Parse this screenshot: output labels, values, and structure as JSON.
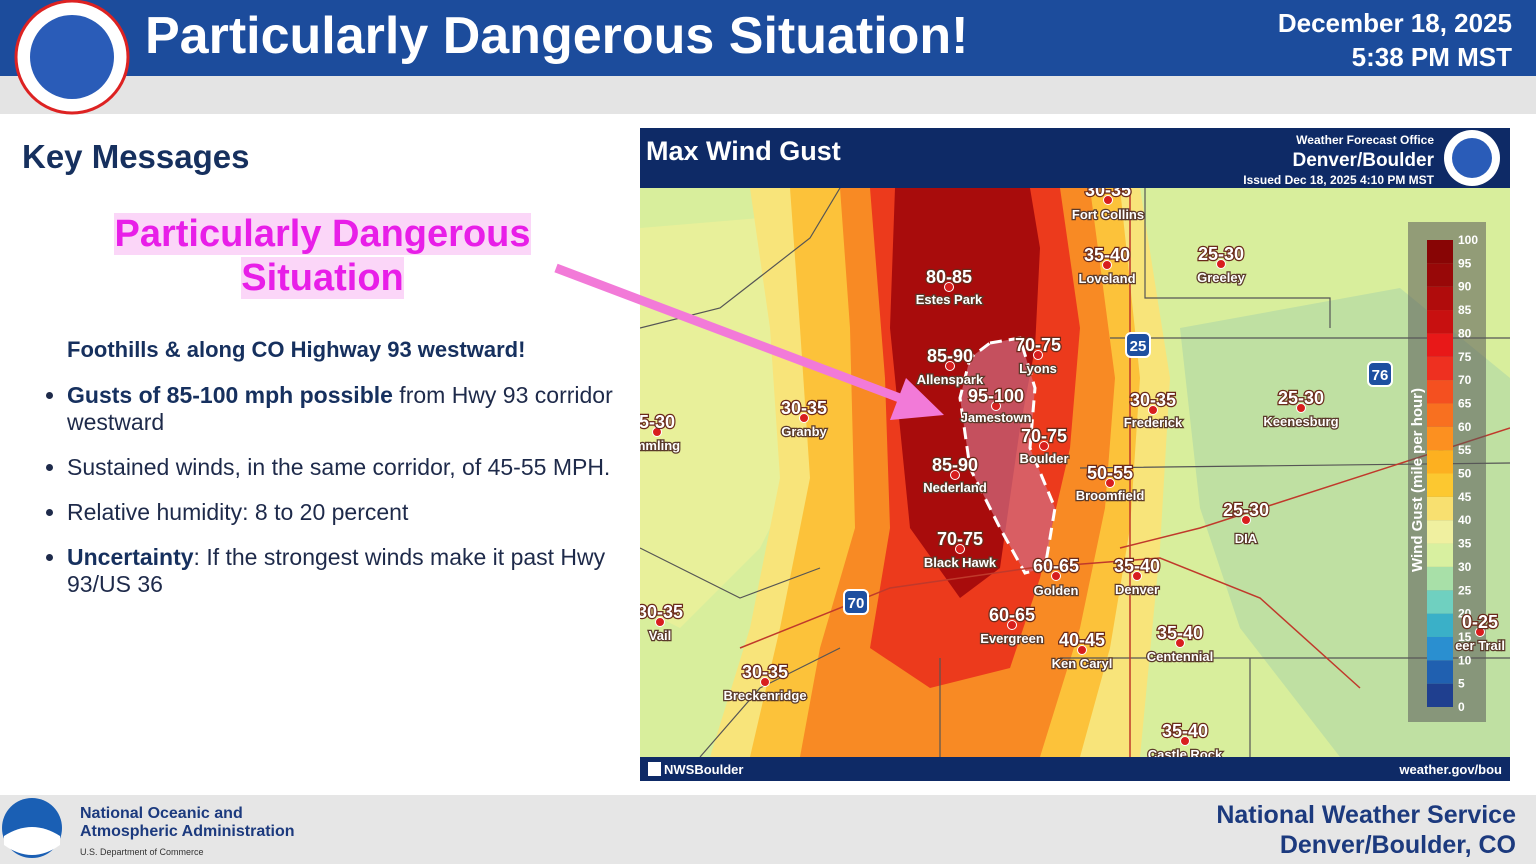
{
  "header": {
    "title": "Particularly Dangerous Situation!",
    "date": "December 18, 2025",
    "time": "5:38 PM MST"
  },
  "key_messages": {
    "heading": "Key Messages",
    "callout": "Particularly Dangerous Situation",
    "subheading": "Foothills & along CO Highway 93 westward!",
    "bullets": [
      {
        "bold": "Gusts of 85-100 mph possible",
        "text": " from Hwy 93 corridor westward"
      },
      {
        "text": "Sustained winds, in the same corridor, of 45-55 MPH."
      },
      {
        "text": "Relative humidity: 8 to 20 percent"
      },
      {
        "bold": "Uncertainty",
        "text": ": If the strongest winds make it past Hwy 93/US 36"
      }
    ]
  },
  "map": {
    "title": "Max Wind Gust",
    "office_label": "Weather Forecast Office",
    "office_name": "Denver/Boulder",
    "issued": "Issued Dec 18, 2025 4:10 PM MST",
    "social": "NWSBoulder",
    "url": "weather.gov/bou",
    "legend_title": "Wind Gust (mile per hour)",
    "legend_ticks": [
      0,
      5,
      10,
      15,
      20,
      25,
      30,
      35,
      40,
      45,
      50,
      55,
      60,
      65,
      70,
      75,
      80,
      85,
      90,
      95,
      100
    ],
    "highways": [
      "25",
      "76",
      "70"
    ],
    "places": [
      {
        "range": "30-35",
        "name": "Fort Collins"
      },
      {
        "range": "35-40",
        "name": "Loveland"
      },
      {
        "range": "25-30",
        "name": "Greeley"
      },
      {
        "range": "80-85",
        "name": "Estes Park"
      },
      {
        "range": "85-90",
        "name": "Allenspark"
      },
      {
        "range": "70-75",
        "name": "Lyons"
      },
      {
        "range": "95-100",
        "name": "Jamestown"
      },
      {
        "range": "70-75",
        "name": "Boulder"
      },
      {
        "range": "85-90",
        "name": "Nederland"
      },
      {
        "range": "30-35",
        "name": "Frederick"
      },
      {
        "range": "25-30",
        "name": "Keenesburg"
      },
      {
        "range": "50-55",
        "name": "Broomfield"
      },
      {
        "range": "25-30",
        "name": "DIA"
      },
      {
        "range": "70-75",
        "name": "Black Hawk"
      },
      {
        "range": "60-65",
        "name": "Golden"
      },
      {
        "range": "35-40",
        "name": "Denver"
      },
      {
        "range": "60-65",
        "name": "Evergreen"
      },
      {
        "range": "40-45",
        "name": "Ken Caryl"
      },
      {
        "range": "35-40",
        "name": "Centennial"
      },
      {
        "range": "30-35",
        "name": "Granby"
      },
      {
        "range": "5-30",
        "name": "mmling"
      },
      {
        "range": "30-35",
        "name": "Vail"
      },
      {
        "range": "30-35",
        "name": "Breckenridge"
      },
      {
        "range": "35-40",
        "name": "Castle Rock"
      },
      {
        "range": "0-25",
        "name": "eer Trail"
      }
    ]
  },
  "footer": {
    "noaa_logo": "NOAA",
    "agency_line1": "National Oceanic and",
    "agency_line2": "Atmospheric Administration",
    "department": "U.S. Department of Commerce",
    "office_line1": "National Weather Service",
    "office_line2": "Denver/Boulder, CO"
  }
}
